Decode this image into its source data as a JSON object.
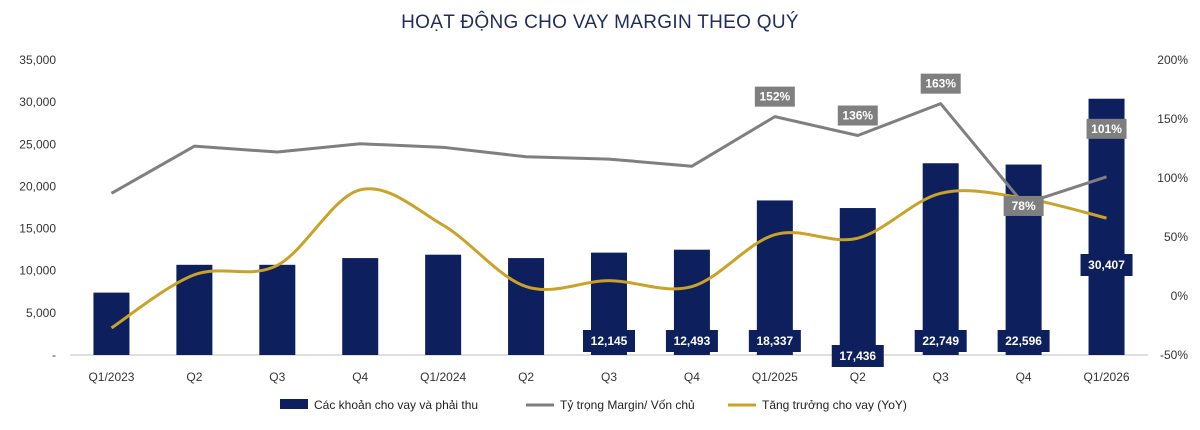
{
  "chart_data": {
    "type": "bar",
    "title": "HOẠT ĐỘNG CHO VAY MARGIN THEO QUÝ",
    "categories": [
      "Q1/2023",
      "Q2",
      "Q3",
      "Q4",
      "Q1/2024",
      "Q2",
      "Q3",
      "Q4",
      "Q1/2025",
      "Q2",
      "Q3",
      "Q4",
      "Q1/2026"
    ],
    "y_left": {
      "min": 0,
      "max": 35000,
      "ticks": [
        "-",
        "5,000",
        "10,000",
        "15,000",
        "20,000",
        "25,000",
        "30,000",
        "35,000"
      ]
    },
    "y_right": {
      "min": -50,
      "max": 200,
      "ticks": [
        "-50%",
        "0%",
        "50%",
        "100%",
        "150%",
        "200%"
      ]
    },
    "grid": false,
    "legend_position": "bottom",
    "series": [
      {
        "name": "Các khoản cho vay và phải thu",
        "kind": "bar",
        "axis": "left",
        "color": "#0d1f5c",
        "values": [
          7400,
          10700,
          10700,
          11500,
          11900,
          11500,
          12145,
          12493,
          18337,
          17436,
          22749,
          22596,
          30407
        ],
        "data_labels": [
          "",
          "",
          "",
          "",
          "",
          "",
          "12,145",
          "12,493",
          "18,337",
          "17,436",
          "22,749",
          "22,596",
          "30,407"
        ]
      },
      {
        "name": "Tỷ trọng Margin/ Vốn chủ",
        "kind": "line",
        "axis": "right",
        "color": "#7f7f7f",
        "values": [
          87,
          127,
          122,
          129,
          126,
          118,
          116,
          110,
          152,
          136,
          163,
          78,
          101
        ],
        "data_labels": [
          "",
          "",
          "",
          "",
          "",
          "",
          "",
          "",
          "152%",
          "136%",
          "163%",
          "78%",
          "101%"
        ]
      },
      {
        "name": "Tăng trưởng cho vay (YoY)",
        "kind": "line",
        "axis": "right",
        "color": "#c9a227",
        "values": [
          -27,
          18,
          26,
          90,
          60,
          8,
          13,
          8,
          52,
          49,
          87,
          83,
          66
        ],
        "data_labels": []
      }
    ]
  }
}
